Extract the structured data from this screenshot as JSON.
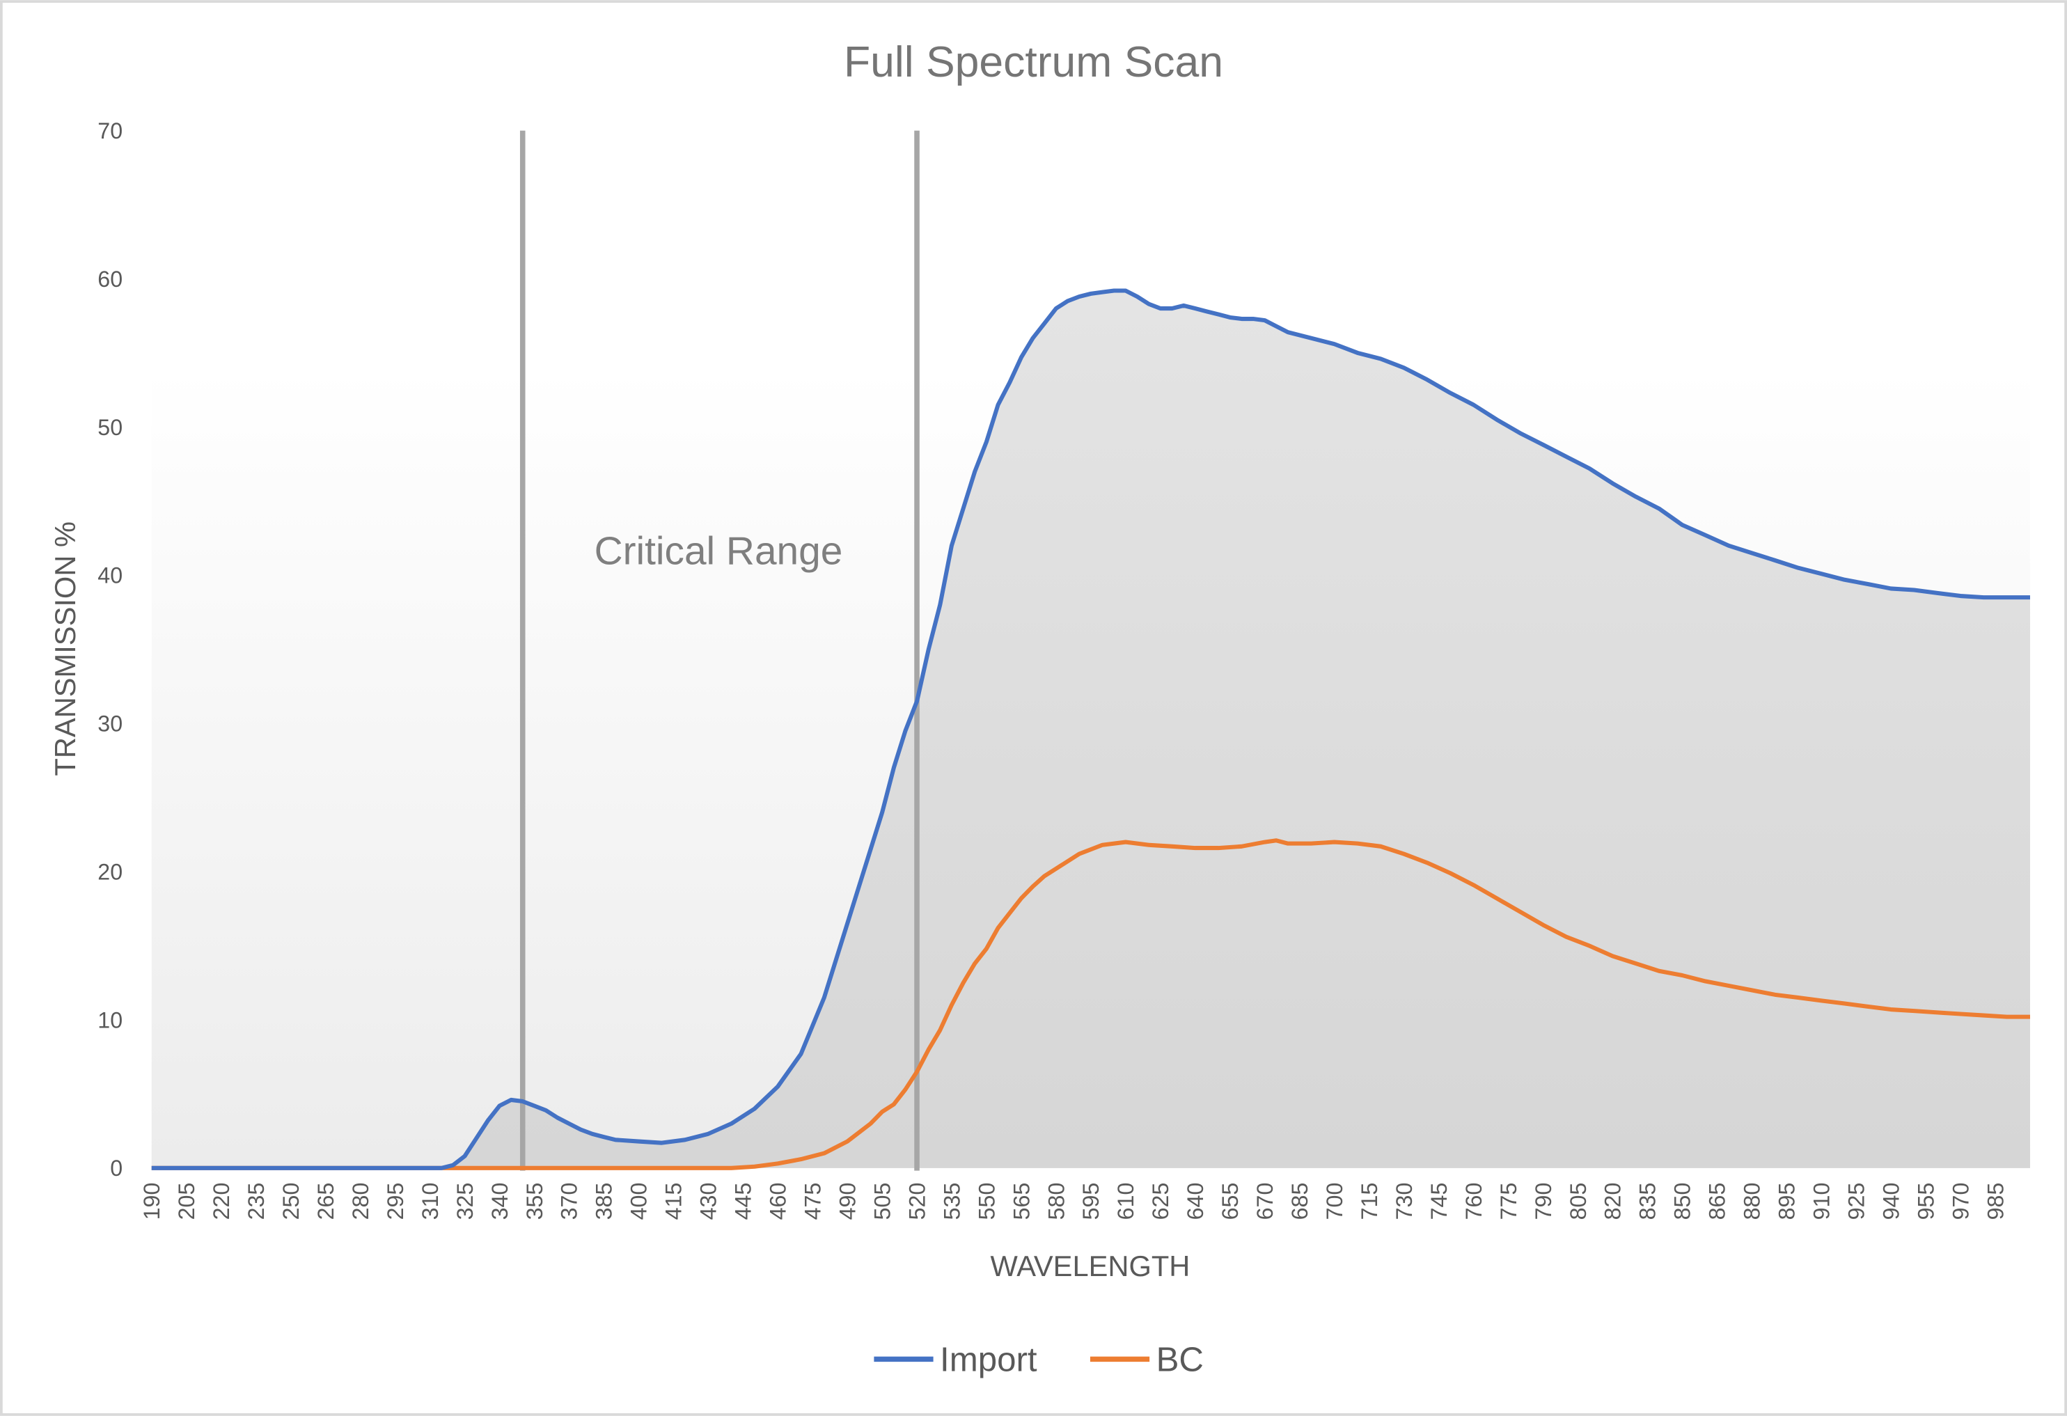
{
  "chart_data": {
    "type": "line",
    "title": "Full Spectrum Scan",
    "xlabel": "WAVELENGTH",
    "ylabel": "TRANSMISSION %",
    "xlim": [
      190,
      1000
    ],
    "ylim": [
      0,
      70
    ],
    "yticks": [
      0,
      10,
      20,
      30,
      40,
      50,
      60,
      70
    ],
    "xticks": [
      190,
      205,
      220,
      235,
      250,
      265,
      280,
      295,
      310,
      325,
      340,
      355,
      370,
      385,
      400,
      415,
      430,
      445,
      460,
      475,
      490,
      505,
      520,
      535,
      550,
      565,
      580,
      595,
      610,
      625,
      640,
      655,
      670,
      685,
      700,
      715,
      730,
      745,
      760,
      775,
      790,
      805,
      820,
      835,
      850,
      865,
      880,
      895,
      910,
      925,
      940,
      955,
      970,
      985
    ],
    "grid": false,
    "legend_position": "bottom",
    "reference_lines": [
      350,
      520
    ],
    "annotations": [
      {
        "text": "Critical Range"
      }
    ],
    "fill_under": "Import",
    "series": [
      {
        "name": "Import",
        "color": "#4472c4",
        "points": [
          [
            190,
            0
          ],
          [
            315,
            0
          ],
          [
            320,
            0.2
          ],
          [
            325,
            0.8
          ],
          [
            330,
            2
          ],
          [
            335,
            3.2
          ],
          [
            340,
            4.2
          ],
          [
            345,
            4.6
          ],
          [
            350,
            4.5
          ],
          [
            355,
            4.2
          ],
          [
            360,
            3.9
          ],
          [
            365,
            3.4
          ],
          [
            370,
            3.0
          ],
          [
            375,
            2.6
          ],
          [
            380,
            2.3
          ],
          [
            385,
            2.1
          ],
          [
            390,
            1.9
          ],
          [
            400,
            1.8
          ],
          [
            410,
            1.7
          ],
          [
            420,
            1.9
          ],
          [
            430,
            2.3
          ],
          [
            440,
            3.0
          ],
          [
            450,
            4.0
          ],
          [
            460,
            5.5
          ],
          [
            470,
            7.7
          ],
          [
            480,
            11.5
          ],
          [
            490,
            16.5
          ],
          [
            500,
            21.5
          ],
          [
            505,
            24
          ],
          [
            510,
            27
          ],
          [
            515,
            29.5
          ],
          [
            520,
            31.5
          ],
          [
            525,
            35
          ],
          [
            530,
            38
          ],
          [
            535,
            42
          ],
          [
            540,
            44.5
          ],
          [
            545,
            47
          ],
          [
            550,
            49
          ],
          [
            555,
            51.5
          ],
          [
            560,
            53
          ],
          [
            565,
            54.7
          ],
          [
            570,
            56
          ],
          [
            575,
            57
          ],
          [
            580,
            58
          ],
          [
            585,
            58.5
          ],
          [
            590,
            58.8
          ],
          [
            595,
            59
          ],
          [
            600,
            59.1
          ],
          [
            605,
            59.2
          ],
          [
            610,
            59.2
          ],
          [
            615,
            58.8
          ],
          [
            620,
            58.3
          ],
          [
            625,
            58
          ],
          [
            630,
            58
          ],
          [
            635,
            58.2
          ],
          [
            640,
            58
          ],
          [
            645,
            57.8
          ],
          [
            650,
            57.6
          ],
          [
            655,
            57.4
          ],
          [
            660,
            57.3
          ],
          [
            665,
            57.3
          ],
          [
            670,
            57.2
          ],
          [
            675,
            56.8
          ],
          [
            680,
            56.4
          ],
          [
            690,
            56
          ],
          [
            700,
            55.6
          ],
          [
            710,
            55
          ],
          [
            720,
            54.6
          ],
          [
            730,
            54
          ],
          [
            740,
            53.2
          ],
          [
            750,
            52.3
          ],
          [
            760,
            51.5
          ],
          [
            770,
            50.5
          ],
          [
            780,
            49.6
          ],
          [
            790,
            48.8
          ],
          [
            800,
            48
          ],
          [
            810,
            47.2
          ],
          [
            820,
            46.2
          ],
          [
            830,
            45.3
          ],
          [
            840,
            44.5
          ],
          [
            850,
            43.4
          ],
          [
            860,
            42.7
          ],
          [
            870,
            42
          ],
          [
            880,
            41.5
          ],
          [
            890,
            41
          ],
          [
            900,
            40.5
          ],
          [
            910,
            40.1
          ],
          [
            920,
            39.7
          ],
          [
            930,
            39.4
          ],
          [
            940,
            39.1
          ],
          [
            950,
            39
          ],
          [
            960,
            38.8
          ],
          [
            970,
            38.6
          ],
          [
            980,
            38.5
          ],
          [
            990,
            38.5
          ],
          [
            1000,
            38.5
          ]
        ]
      },
      {
        "name": "BC",
        "color": "#ed7d31",
        "points": [
          [
            190,
            0
          ],
          [
            440,
            0
          ],
          [
            450,
            0.1
          ],
          [
            460,
            0.3
          ],
          [
            470,
            0.6
          ],
          [
            480,
            1.0
          ],
          [
            490,
            1.8
          ],
          [
            500,
            3.0
          ],
          [
            505,
            3.8
          ],
          [
            510,
            4.3
          ],
          [
            515,
            5.3
          ],
          [
            520,
            6.5
          ],
          [
            525,
            8.0
          ],
          [
            530,
            9.3
          ],
          [
            535,
            11
          ],
          [
            540,
            12.5
          ],
          [
            545,
            13.8
          ],
          [
            550,
            14.8
          ],
          [
            555,
            16.2
          ],
          [
            560,
            17.2
          ],
          [
            565,
            18.2
          ],
          [
            570,
            19
          ],
          [
            575,
            19.7
          ],
          [
            580,
            20.2
          ],
          [
            590,
            21.2
          ],
          [
            600,
            21.8
          ],
          [
            610,
            22
          ],
          [
            620,
            21.8
          ],
          [
            630,
            21.7
          ],
          [
            640,
            21.6
          ],
          [
            650,
            21.6
          ],
          [
            660,
            21.7
          ],
          [
            670,
            22
          ],
          [
            675,
            22.1
          ],
          [
            680,
            21.9
          ],
          [
            690,
            21.9
          ],
          [
            700,
            22
          ],
          [
            710,
            21.9
          ],
          [
            720,
            21.7
          ],
          [
            730,
            21.2
          ],
          [
            740,
            20.6
          ],
          [
            750,
            19.9
          ],
          [
            760,
            19.1
          ],
          [
            770,
            18.2
          ],
          [
            780,
            17.3
          ],
          [
            790,
            16.4
          ],
          [
            800,
            15.6
          ],
          [
            810,
            15
          ],
          [
            820,
            14.3
          ],
          [
            830,
            13.8
          ],
          [
            840,
            13.3
          ],
          [
            850,
            13
          ],
          [
            860,
            12.6
          ],
          [
            870,
            12.3
          ],
          [
            880,
            12
          ],
          [
            890,
            11.7
          ],
          [
            900,
            11.5
          ],
          [
            910,
            11.3
          ],
          [
            920,
            11.1
          ],
          [
            930,
            10.9
          ],
          [
            940,
            10.7
          ],
          [
            950,
            10.6
          ],
          [
            960,
            10.5
          ],
          [
            970,
            10.4
          ],
          [
            980,
            10.3
          ],
          [
            990,
            10.2
          ],
          [
            1000,
            10.2
          ]
        ]
      }
    ]
  }
}
